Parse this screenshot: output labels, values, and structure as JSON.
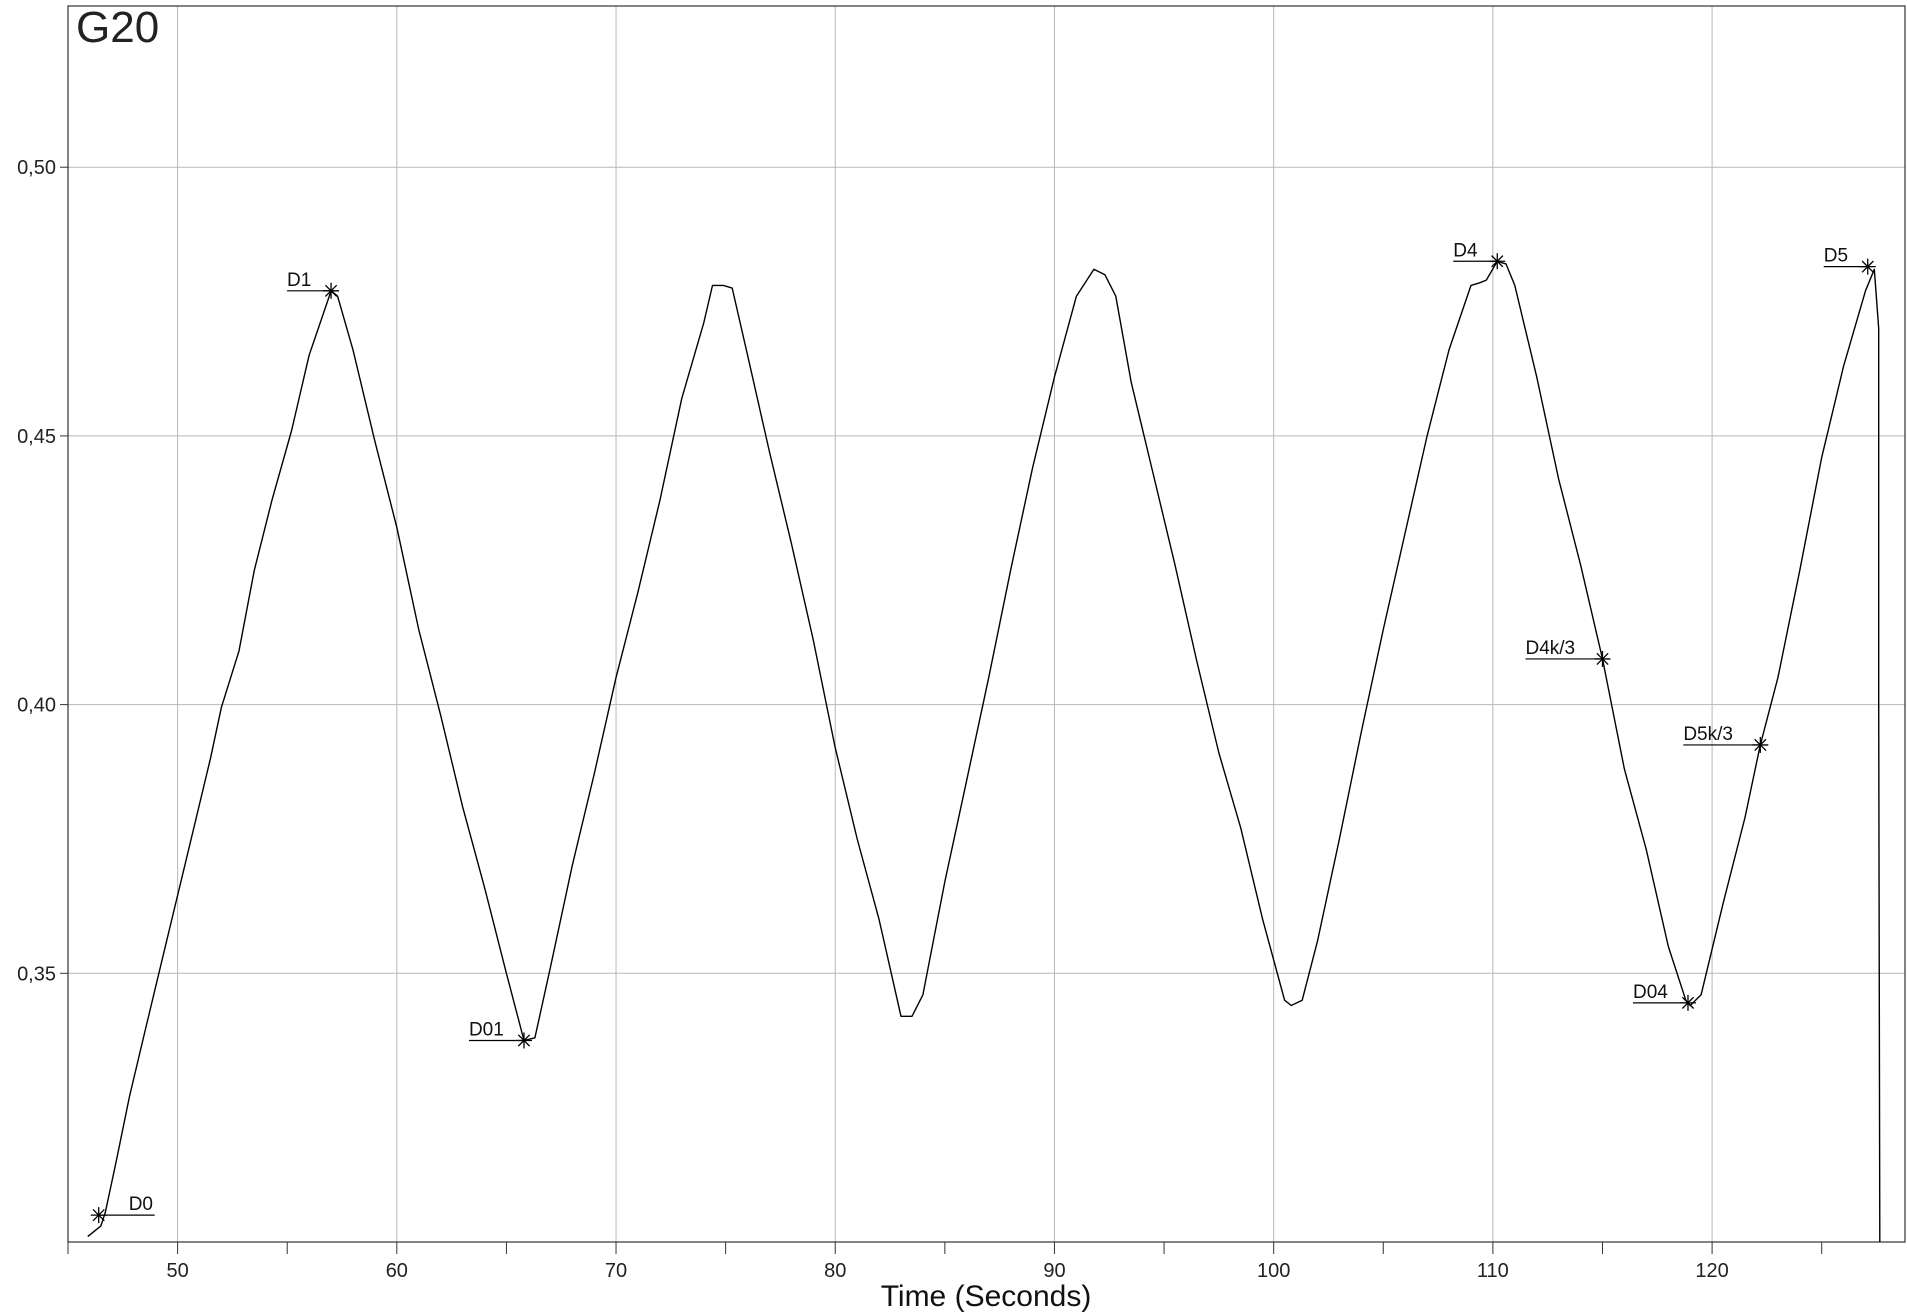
{
  "chart_data": {
    "type": "line",
    "title": "G20",
    "xlabel": "Time (Seconds)",
    "ylabel": "",
    "xlim": [
      45,
      128.8
    ],
    "ylim": [
      0.3,
      0.53
    ],
    "x_ticks": [
      50,
      60,
      70,
      80,
      90,
      100,
      110,
      120
    ],
    "x_minor_ticks": [
      45,
      55,
      65,
      75,
      85,
      95,
      105,
      115,
      125
    ],
    "y_ticks": [
      0.35,
      0.4,
      0.45,
      0.5
    ],
    "y_tick_labels": [
      "0,35",
      "0,40",
      "0,45",
      "0,50"
    ],
    "grid": true,
    "series": [
      {
        "color": "#000000",
        "x": [
          45.9,
          46.5,
          46.7,
          47.2,
          47.8,
          48.5,
          49.5,
          50.5,
          51.5,
          52.0,
          52.8,
          53.5,
          54.3,
          55.2,
          56.0,
          56.5,
          57.0,
          57.3,
          58.0,
          59.0,
          60.0,
          61.0,
          62.0,
          63.0,
          64.0,
          65.0,
          65.8,
          66.3,
          67.0,
          68.0,
          69.0,
          70.0,
          71.0,
          72.0,
          73.0,
          74.0,
          74.4,
          74.9,
          75.3,
          76.0,
          77.0,
          78.0,
          79.0,
          80.0,
          81.0,
          82.0,
          83.0,
          83.5,
          84.0,
          85.0,
          86.0,
          87.0,
          88.0,
          89.0,
          90.0,
          91.0,
          91.8,
          92.3,
          92.8,
          93.5,
          94.5,
          95.5,
          96.5,
          97.5,
          98.5,
          99.5,
          100.5,
          100.8,
          101.3,
          102.0,
          103.0,
          104.0,
          105.0,
          106.0,
          107.0,
          108.0,
          109.0,
          109.4,
          109.7,
          110.2,
          110.6,
          111.0,
          112.0,
          113.0,
          114.0,
          115.0,
          116.0,
          117.0,
          118.0,
          118.8,
          119.0,
          119.5,
          120.5,
          121.5,
          122.2,
          123.0,
          124.0,
          125.0,
          126.0,
          127.0,
          127.4,
          127.6,
          127.6,
          127.65
        ],
        "y": [
          0.301,
          0.303,
          0.3055,
          0.315,
          0.327,
          0.339,
          0.356,
          0.373,
          0.39,
          0.3995,
          0.41,
          0.425,
          0.438,
          0.451,
          0.465,
          0.471,
          0.477,
          0.476,
          0.466,
          0.449,
          0.433,
          0.414,
          0.398,
          0.381,
          0.366,
          0.35,
          0.3375,
          0.338,
          0.351,
          0.37,
          0.387,
          0.405,
          0.421,
          0.438,
          0.457,
          0.471,
          0.478,
          0.478,
          0.4775,
          0.465,
          0.447,
          0.43,
          0.412,
          0.392,
          0.375,
          0.36,
          0.342,
          0.342,
          0.346,
          0.367,
          0.386,
          0.405,
          0.425,
          0.444,
          0.461,
          0.476,
          0.481,
          0.48,
          0.476,
          0.46,
          0.443,
          0.426,
          0.408,
          0.391,
          0.377,
          0.36,
          0.345,
          0.344,
          0.345,
          0.356,
          0.375,
          0.395,
          0.414,
          0.432,
          0.45,
          0.466,
          0.478,
          0.4785,
          0.479,
          0.4825,
          0.482,
          0.478,
          0.461,
          0.442,
          0.426,
          0.4085,
          0.388,
          0.373,
          0.355,
          0.345,
          0.344,
          0.346,
          0.363,
          0.379,
          0.3925,
          0.405,
          0.425,
          0.446,
          0.463,
          0.477,
          0.481,
          0.47,
          0.4,
          0.3
        ]
      }
    ],
    "annotations": [
      {
        "label": "D0",
        "x": 46.4,
        "y": 0.305,
        "side": "right"
      },
      {
        "label": "D1",
        "x": 57.0,
        "y": 0.477,
        "side": "left"
      },
      {
        "label": "D01",
        "x": 65.8,
        "y": 0.3375,
        "side": "left"
      },
      {
        "label": "D4",
        "x": 110.2,
        "y": 0.4825,
        "side": "left"
      },
      {
        "label": "D4k/3",
        "x": 115.0,
        "y": 0.4085,
        "side": "left"
      },
      {
        "label": "D04",
        "x": 118.9,
        "y": 0.3445,
        "side": "left"
      },
      {
        "label": "D5k/3",
        "x": 122.2,
        "y": 0.3925,
        "side": "left"
      },
      {
        "label": "D5",
        "x": 127.1,
        "y": 0.4815,
        "side": "left"
      }
    ]
  }
}
